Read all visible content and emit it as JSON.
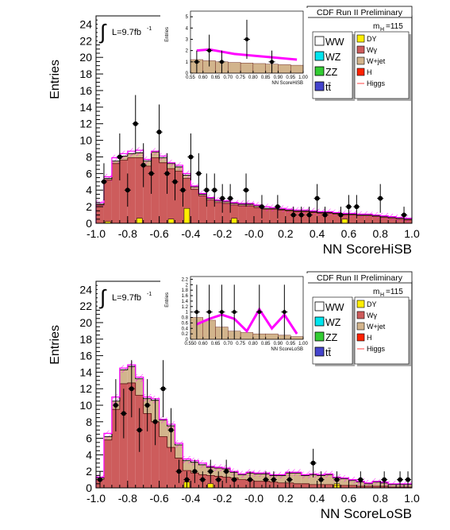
{
  "chart_data": [
    {
      "type": "bar",
      "title": "CDF Run II Preliminary",
      "xlabel": "NN ScoreHiSB",
      "ylabel": "Entries",
      "xlim": [
        -1.0,
        1.0
      ],
      "ylim": [
        0,
        25
      ],
      "xticks": [
        "-1.0",
        "-0.8",
        "-0.6",
        "-0.4",
        "-0.2",
        "-0.0",
        "0.2",
        "0.4",
        "0.6",
        "0.8",
        "1.0"
      ],
      "yticks": [
        "0",
        "2",
        "4",
        "6",
        "8",
        "10",
        "12",
        "14",
        "16",
        "18",
        "20",
        "22",
        "24"
      ],
      "lumi": "L=9.7fb",
      "lumi_sup": "-1",
      "mass_label": "m",
      "mass_sub": "H",
      "mass_value": "=115",
      "legend_left": [
        "WW",
        "WZ",
        "ZZ",
        "tt̄"
      ],
      "legend_right": [
        "DY",
        "Wγ",
        "W+jet",
        "H",
        "Higgs"
      ],
      "colors": {
        "WW": "#ffffff",
        "WZ": "#00e5ee",
        "ZZ": "#33cc33",
        "tt": "#4444cc",
        "DY": "#ffee00",
        "Wgamma": "#cd5c5c",
        "Wjet": "#d2b48c",
        "H": "#ff2200",
        "Higgs": "#ff00ff"
      },
      "series": [
        {
          "name": "Wγ",
          "values": [
            2.2,
            5.2,
            7.2,
            7.6,
            7.9,
            7.9,
            6.9,
            7.9,
            7.3,
            6.6,
            6.3,
            5.4,
            4.1,
            3.3,
            2.8,
            2.5,
            2.4,
            2.2,
            2.1,
            2.1,
            1.9,
            1.7,
            1.7,
            1.6,
            1.5,
            1.4,
            1.4,
            1.3,
            1.2,
            1.2,
            1.1,
            1.0,
            1.0,
            0.9,
            0.9,
            0.8,
            0.7,
            0.6,
            0.5,
            0.4
          ]
        },
        {
          "name": "W+jet",
          "values": [
            0.1,
            0.2,
            0.3,
            0.5,
            0.5,
            0.6,
            0.6,
            0.7,
            0.6,
            0.6,
            0.5,
            0.4,
            0.3,
            0.2,
            0.2,
            0.2,
            0.2,
            0.2,
            0.2,
            0.2,
            0.2,
            0.1,
            0.1,
            0.1,
            0.1,
            0.1,
            0.1,
            0.1,
            0.1,
            0.1,
            0.1,
            0.1,
            0.1,
            0.1,
            0.1,
            0.1,
            0.1,
            0.1,
            0.1,
            0.1
          ]
        },
        {
          "name": "DY",
          "values": [
            0,
            0.2,
            0,
            0,
            0,
            0.6,
            0,
            0,
            0,
            0.5,
            0,
            1.8,
            0,
            0,
            0,
            0,
            0,
            0.6,
            0,
            0,
            0,
            0,
            0,
            0,
            0,
            0,
            0,
            0,
            0,
            0,
            0,
            0.5,
            0,
            0,
            0,
            0,
            0,
            0,
            0,
            0
          ]
        },
        {
          "name": "Higgs",
          "values": [
            2.5,
            5.6,
            7.9,
            8.4,
            8.7,
            8.8,
            7.7,
            8.7,
            8.1,
            7.3,
            7.0,
            6.0,
            4.5,
            3.6,
            3.1,
            2.8,
            2.7,
            2.5,
            2.4,
            2.4,
            2.2,
            2.0,
            1.9,
            1.8,
            1.7,
            1.6,
            1.6,
            1.5,
            1.4,
            1.4,
            1.3,
            1.2,
            1.2,
            1.1,
            1.1,
            1.0,
            0.9,
            0.8,
            0.7,
            0.6
          ]
        }
      ],
      "points": [
        {
          "x": -0.95,
          "y": 5,
          "e": 2.24
        },
        {
          "x": -0.85,
          "y": 8,
          "e": 2.83
        },
        {
          "x": -0.8,
          "y": 4,
          "e": 2.0
        },
        {
          "x": -0.75,
          "y": 12,
          "e": 3.46
        },
        {
          "x": -0.7,
          "y": 7,
          "e": 2.65
        },
        {
          "x": -0.65,
          "y": 6,
          "e": 2.45
        },
        {
          "x": -0.6,
          "y": 11,
          "e": 3.32
        },
        {
          "x": -0.55,
          "y": 6,
          "e": 2.45
        },
        {
          "x": -0.5,
          "y": 5,
          "e": 2.24
        },
        {
          "x": -0.45,
          "y": 4,
          "e": 2.0
        },
        {
          "x": -0.4,
          "y": 8,
          "e": 2.83
        },
        {
          "x": -0.35,
          "y": 6,
          "e": 2.45
        },
        {
          "x": -0.3,
          "y": 4,
          "e": 2.0
        },
        {
          "x": -0.25,
          "y": 4,
          "e": 2.0
        },
        {
          "x": -0.2,
          "y": 3,
          "e": 1.73
        },
        {
          "x": -0.15,
          "y": 3,
          "e": 1.73
        },
        {
          "x": -0.05,
          "y": 4,
          "e": 2.0
        },
        {
          "x": 0.05,
          "y": 2,
          "e": 1.41
        },
        {
          "x": 0.15,
          "y": 2,
          "e": 1.41
        },
        {
          "x": 0.25,
          "y": 1,
          "e": 1.0
        },
        {
          "x": 0.3,
          "y": 1,
          "e": 1.0
        },
        {
          "x": 0.35,
          "y": 1,
          "e": 1.0
        },
        {
          "x": 0.4,
          "y": 3,
          "e": 1.73
        },
        {
          "x": 0.45,
          "y": 1,
          "e": 1.0
        },
        {
          "x": 0.55,
          "y": 1,
          "e": 1.0
        },
        {
          "x": 0.6,
          "y": 2,
          "e": 1.41
        },
        {
          "x": 0.65,
          "y": 2,
          "e": 1.41
        },
        {
          "x": 0.8,
          "y": 3,
          "e": 1.73
        },
        {
          "x": 0.95,
          "y": 1,
          "e": 1.0
        }
      ],
      "inset": {
        "xlabel": "NN ScoreHiSB",
        "ylabel": "Entries",
        "xlim": [
          0.55,
          1.0
        ],
        "ylim": [
          0,
          5.5
        ],
        "xticks": [
          "0.55",
          "0.60",
          "0.65",
          "0.70",
          "0.75",
          "0.80",
          "0.85",
          "0.90",
          "0.95",
          "1.00"
        ],
        "yticks": [
          "0",
          "1",
          "2",
          "3",
          "4",
          "5"
        ],
        "bkg": [
          1.2,
          1.1,
          1.0,
          0.95,
          0.9,
          0.85,
          0.8,
          0.75,
          0.7
        ],
        "higgs": [
          2.0,
          2.1,
          1.9,
          1.7,
          1.6,
          1.5,
          1.4,
          1.3,
          1.2
        ],
        "points": [
          {
            "x": 0.575,
            "y": 1,
            "e": 1.0
          },
          {
            "x": 0.625,
            "y": 2,
            "e": 1.41
          },
          {
            "x": 0.675,
            "y": 1,
            "e": 1.0
          },
          {
            "x": 0.775,
            "y": 3,
            "e": 1.73
          },
          {
            "x": 0.875,
            "y": 1,
            "e": 1.0
          }
        ]
      }
    },
    {
      "type": "bar",
      "title": "CDF Run II Preliminary",
      "xlabel": "NN ScoreLoSB",
      "ylabel": "Entries",
      "xlim": [
        -1.0,
        1.0
      ],
      "ylim": [
        0,
        25
      ],
      "xticks": [
        "-1.0",
        "-0.8",
        "-0.6",
        "-0.4",
        "-0.2",
        "-0.0",
        "0.2",
        "0.4",
        "0.6",
        "0.8",
        "1.0"
      ],
      "yticks": [
        "0",
        "2",
        "4",
        "6",
        "8",
        "10",
        "12",
        "14",
        "16",
        "18",
        "20",
        "22",
        "24"
      ],
      "lumi": "L=9.7fb",
      "lumi_sup": "-1",
      "mass_label": "m",
      "mass_sub": "H",
      "mass_value": "=115",
      "legend_left": [
        "WW",
        "WZ",
        "ZZ",
        "tt̄"
      ],
      "legend_right": [
        "DY",
        "Wγ",
        "W+jet",
        "H",
        "Higgs"
      ],
      "colors": {
        "WW": "#ffffff",
        "WZ": "#00e5ee",
        "ZZ": "#33cc33",
        "tt": "#4444cc",
        "DY": "#ffee00",
        "Wgamma": "#cd5c5c",
        "Wjet": "#d2b48c",
        "H": "#ff2200",
        "Higgs": "#ff00ff"
      },
      "series": [
        {
          "name": "Wγ",
          "values": [
            1.0,
            5.8,
            9.5,
            12.6,
            12.7,
            11.2,
            9.0,
            8.0,
            6.2,
            4.9,
            3.6,
            2.1,
            1.8,
            1.6,
            1.5,
            1.4,
            1.3,
            1.2,
            1.0,
            0.9,
            0.8,
            0.8,
            0.7,
            0.6,
            0.6,
            0.5,
            0.5,
            0.4,
            0.4,
            0.4,
            0.3,
            0.3,
            0.3,
            0.2,
            0.2,
            0.2,
            0.2,
            0.1,
            0.1,
            0.1
          ]
        },
        {
          "name": "W+jet",
          "values": [
            0.2,
            0.4,
            1.0,
            1.7,
            2.0,
            2.0,
            1.8,
            2.6,
            2.0,
            2.6,
            1.6,
            1.2,
            1.3,
            1.2,
            1.0,
            1.0,
            1.0,
            0.7,
            0.6,
            0.9,
            0.9,
            0.9,
            0.8,
            0.9,
            1.2,
            1.3,
            1.0,
            1.2,
            1.1,
            1.2,
            0.9,
            0.8,
            0.6,
            0.5,
            0.3,
            0.5,
            0.4,
            0.3,
            0.3,
            0.3
          ]
        },
        {
          "name": "DY",
          "values": [
            0,
            0,
            0,
            0,
            0,
            0,
            0,
            0,
            0,
            0,
            0,
            0.7,
            0,
            0,
            0.5,
            0,
            0,
            0,
            0,
            0,
            0,
            0,
            0,
            0,
            0,
            0,
            0,
            0,
            0,
            0,
            0.5,
            0,
            0,
            0,
            0,
            0,
            0,
            0,
            0,
            0
          ]
        },
        {
          "name": "Higgs",
          "values": [
            1.3,
            6.6,
            11.0,
            14.5,
            14.9,
            13.4,
            11.0,
            10.8,
            8.3,
            7.7,
            5.4,
            3.5,
            3.3,
            3.0,
            2.6,
            2.5,
            2.4,
            2.0,
            1.7,
            1.9,
            1.8,
            1.8,
            1.6,
            1.6,
            1.9,
            1.9,
            1.6,
            1.7,
            1.6,
            1.7,
            1.3,
            1.2,
            1.0,
            0.8,
            0.6,
            0.8,
            0.7,
            0.5,
            0.5,
            0.5
          ]
        }
      ],
      "points": [
        {
          "x": -0.975,
          "y": 1,
          "e": 1.0
        },
        {
          "x": -0.875,
          "y": 10,
          "e": 3.16
        },
        {
          "x": -0.825,
          "y": 9,
          "e": 3.0
        },
        {
          "x": -0.775,
          "y": 12,
          "e": 3.46
        },
        {
          "x": -0.725,
          "y": 7,
          "e": 2.65
        },
        {
          "x": -0.675,
          "y": 10,
          "e": 3.16
        },
        {
          "x": -0.625,
          "y": 8,
          "e": 2.83
        },
        {
          "x": -0.575,
          "y": 12,
          "e": 3.46
        },
        {
          "x": -0.525,
          "y": 7,
          "e": 2.65
        },
        {
          "x": -0.475,
          "y": 2,
          "e": 1.41
        },
        {
          "x": -0.425,
          "y": 1,
          "e": 1.0
        },
        {
          "x": -0.375,
          "y": 2,
          "e": 1.41
        },
        {
          "x": -0.325,
          "y": 1,
          "e": 1.0
        },
        {
          "x": -0.275,
          "y": 2,
          "e": 1.41
        },
        {
          "x": -0.225,
          "y": 1,
          "e": 1.0
        },
        {
          "x": -0.175,
          "y": 2,
          "e": 1.41
        },
        {
          "x": -0.125,
          "y": 1,
          "e": 1.0
        },
        {
          "x": -0.025,
          "y": 1,
          "e": 1.0
        },
        {
          "x": 0.075,
          "y": 1,
          "e": 1.0
        },
        {
          "x": 0.125,
          "y": 1,
          "e": 1.0
        },
        {
          "x": 0.225,
          "y": 1,
          "e": 1.0
        },
        {
          "x": 0.375,
          "y": 3,
          "e": 1.73
        },
        {
          "x": 0.425,
          "y": 1,
          "e": 1.0
        },
        {
          "x": 0.525,
          "y": 1,
          "e": 1.0
        },
        {
          "x": 0.675,
          "y": 1,
          "e": 1.0
        },
        {
          "x": 0.825,
          "y": 1,
          "e": 1.0
        },
        {
          "x": 0.925,
          "y": 1,
          "e": 1.0
        },
        {
          "x": 0.975,
          "y": 1,
          "e": 1.0
        }
      ],
      "inset": {
        "xlabel": "NN ScoreLoSB",
        "ylabel": "Entries",
        "xlim": [
          0.55,
          1.0
        ],
        "ylim": [
          0,
          2.3
        ],
        "xticks": [
          "0.550",
          "0.60",
          "0.65",
          "0.70",
          "0.75",
          "0.80",
          "0.85",
          "0.90",
          "0.95",
          "1.00"
        ],
        "yticks": [
          "0",
          "0.2",
          "0.4",
          "0.6",
          "0.8",
          "1",
          "1.2",
          "1.4",
          "1.6",
          "1.8",
          "2",
          "2.2"
        ],
        "bkg": [
          0.8,
          0.7,
          0.45,
          0.3,
          0.25,
          0.2,
          0.2,
          0.15,
          0.1
        ],
        "higgs": [
          0.55,
          0.75,
          0.9,
          0.75,
          0.3,
          1.1,
          0.4,
          0.9,
          0.2
        ],
        "points": [
          {
            "x": 0.575,
            "y": 1,
            "e": 1.0
          },
          {
            "x": 0.625,
            "y": 1,
            "e": 1.0
          },
          {
            "x": 0.675,
            "y": 1,
            "e": 1.0
          },
          {
            "x": 0.725,
            "y": 1,
            "e": 1.0
          },
          {
            "x": 0.825,
            "y": 1,
            "e": 1.0
          },
          {
            "x": 0.925,
            "y": 1,
            "e": 1.0
          }
        ]
      }
    }
  ]
}
